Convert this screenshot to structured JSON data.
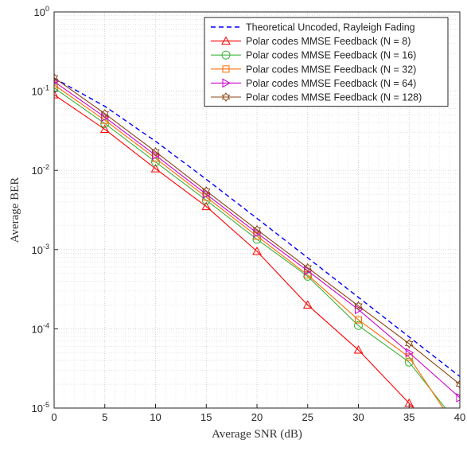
{
  "chart_data": {
    "type": "line",
    "xlabel": "Average SNR (dB)",
    "ylabel": "Average BER",
    "xlim": [
      0,
      40
    ],
    "ylim": [
      1e-05,
      1
    ],
    "yscale": "log",
    "grid": true,
    "legend_position": "top-right",
    "x_ticks": [
      0,
      5,
      10,
      15,
      20,
      25,
      30,
      35,
      40
    ],
    "x_tick_labels": [
      "0",
      "5",
      "10",
      "15",
      "20",
      "25",
      "30",
      "35",
      "40"
    ],
    "y_ticks": [
      {
        "value": 1,
        "base": "10",
        "exp": "0"
      },
      {
        "value": 0.1,
        "base": "10",
        "exp": "-1"
      },
      {
        "value": 0.01,
        "base": "10",
        "exp": "-2"
      },
      {
        "value": 0.001,
        "base": "10",
        "exp": "-3"
      },
      {
        "value": 0.0001,
        "base": "10",
        "exp": "-4"
      },
      {
        "value": 1e-05,
        "base": "10",
        "exp": "-5"
      }
    ],
    "x": [
      0,
      5,
      10,
      15,
      20,
      25,
      30,
      35,
      40
    ],
    "series": [
      {
        "name": "Theoretical Uncoded, Rayleigh Fading",
        "color": "#0000ff",
        "dash": "dashed",
        "marker": "none",
        "x": [
          0,
          5,
          10,
          15,
          20,
          25,
          30,
          35,
          40
        ],
        "values": [
          0.146,
          0.0644,
          0.0233,
          0.00772,
          0.00248,
          0.000789,
          0.00025,
          7.91e-05,
          2.5e-05
        ]
      },
      {
        "name": "Polar codes MMSE Feedback (N = 8)",
        "color": "#ff0000",
        "marker": "triangle-up",
        "x": [
          0,
          5,
          10,
          15,
          20,
          25,
          30,
          35,
          39
        ],
        "values": [
          0.09,
          0.033,
          0.0105,
          0.0035,
          0.00095,
          0.0002,
          5.4e-05,
          1.15e-05,
          3.3e-06
        ],
        "marker_count": 8
      },
      {
        "name": "Polar codes MMSE Feedback (N = 16)",
        "color": "#3cb43c",
        "marker": "circle",
        "x": [
          0,
          5,
          10,
          15,
          20,
          25,
          30,
          35,
          39
        ],
        "values": [
          0.11,
          0.039,
          0.0128,
          0.0042,
          0.00135,
          0.00046,
          0.00011,
          3.8e-05,
          8.5e-06
        ],
        "marker_count": 8
      },
      {
        "name": "Polar codes MMSE Feedback (N = 32)",
        "color": "#ff6a00",
        "marker": "square",
        "x": [
          0,
          5,
          10,
          15,
          20,
          25,
          30,
          35,
          39
        ],
        "values": [
          0.12,
          0.043,
          0.0142,
          0.0046,
          0.00148,
          0.00048,
          0.00013,
          4.4e-05,
          7.5e-06
        ],
        "marker_count": 8
      },
      {
        "name": "Polar codes MMSE Feedback (N = 64)",
        "color": "#cc00cc",
        "marker": "triangle-right",
        "x": [
          0,
          5,
          10,
          15,
          20,
          25,
          30,
          35,
          40
        ],
        "values": [
          0.132,
          0.047,
          0.0155,
          0.005,
          0.00162,
          0.00054,
          0.000175,
          5e-05,
          1.35e-05
        ],
        "marker_count": 9
      },
      {
        "name": "Polar codes MMSE Feedback (N = 128)",
        "color": "#8b4513",
        "marker": "hexagram",
        "x": [
          0,
          5,
          10,
          15,
          20,
          25,
          30,
          35,
          40
        ],
        "values": [
          0.148,
          0.052,
          0.0172,
          0.0055,
          0.00178,
          0.00059,
          0.000195,
          6.5e-05,
          2e-05
        ],
        "marker_count": 9
      }
    ]
  }
}
